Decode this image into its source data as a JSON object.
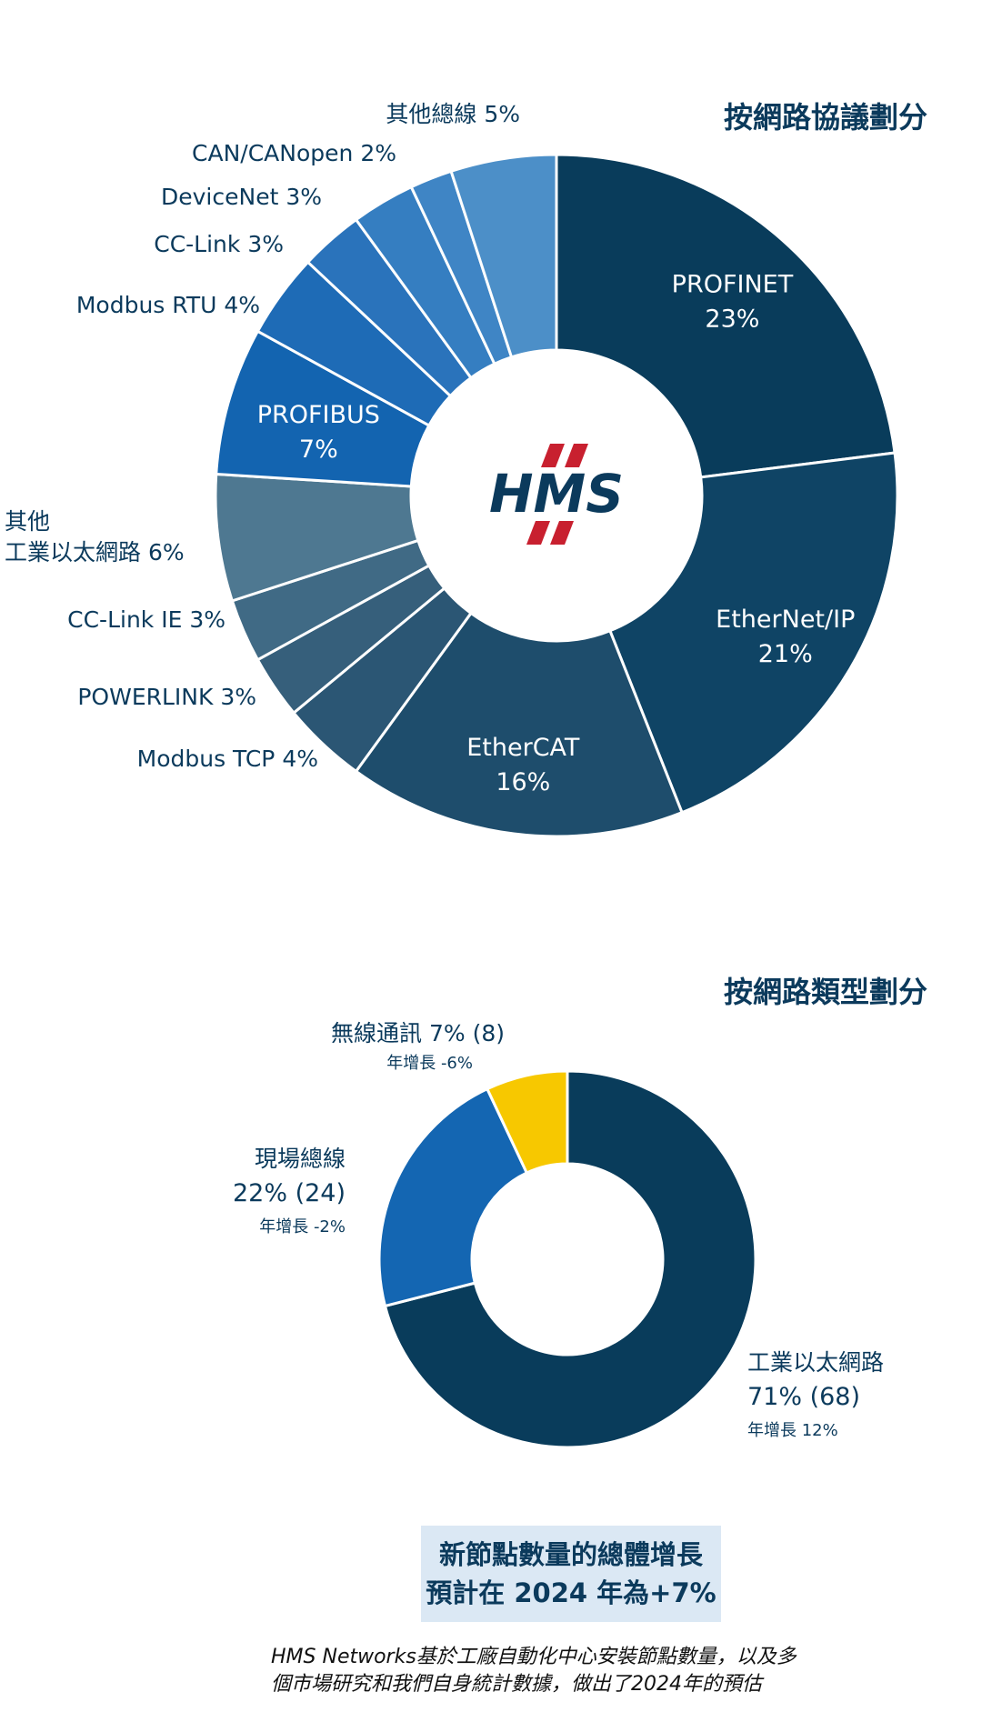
{
  "chart_data": [
    {
      "type": "pie",
      "variant": "donut",
      "title": "按網路協議劃分",
      "center_logo": "HMS",
      "slices": [
        {
          "label": "PROFINET",
          "value": 23,
          "value_text": "23%",
          "color": "#093c5b",
          "label_position": "inside"
        },
        {
          "label": "EtherNet/IP",
          "value": 21,
          "value_text": "21%",
          "color": "#0f4465",
          "label_position": "inside"
        },
        {
          "label": "EtherCAT",
          "value": 16,
          "value_text": "16%",
          "color": "#1e4d6c",
          "label_position": "inside"
        },
        {
          "label": "Modbus TCP",
          "value": 4,
          "value_text": "4%",
          "color": "#2b5674",
          "label_position": "outside"
        },
        {
          "label": "POWERLINK",
          "value": 3,
          "value_text": "3%",
          "color": "#365f7b",
          "label_position": "outside"
        },
        {
          "label": "CC-Link IE",
          "value": 3,
          "value_text": "3%",
          "color": "#406a85",
          "label_position": "outside"
        },
        {
          "label": "其他工業以太網路",
          "label_lines": [
            "其他",
            "工業以太網路 6%"
          ],
          "value": 6,
          "value_text": "6%",
          "color": "#4e7891",
          "label_position": "outside"
        },
        {
          "label": "PROFIBUS",
          "value": 7,
          "value_text": "7%",
          "color": "#1364b0",
          "label_position": "inside"
        },
        {
          "label": "Modbus RTU",
          "value": 4,
          "value_text": "4%",
          "color": "#1e6bb6",
          "label_position": "outside"
        },
        {
          "label": "CC-Link",
          "value": 3,
          "value_text": "3%",
          "color": "#2a73bb",
          "label_position": "outside"
        },
        {
          "label": "DeviceNet",
          "value": 3,
          "value_text": "3%",
          "color": "#357ec1",
          "label_position": "outside"
        },
        {
          "label": "CAN/CANopen",
          "value": 2,
          "value_text": "2%",
          "color": "#3f85c5",
          "label_position": "outside"
        },
        {
          "label": "其他總線",
          "value": 5,
          "value_text": "5%",
          "color": "#4c8fc8",
          "label_position": "outside"
        }
      ]
    },
    {
      "type": "pie",
      "variant": "donut",
      "title": "按網路類型劃分",
      "slices": [
        {
          "label": "工業以太網路",
          "value": 71,
          "value_text": "71% (68)",
          "growth": "年增長 12%",
          "color": "#093c5b"
        },
        {
          "label": "現場總線",
          "value": 22,
          "value_text": "22% (24)",
          "growth": "年增長  -2%",
          "color": "#1466b2"
        },
        {
          "label": "無線通訊",
          "value": 7,
          "value_text": "7% (8)",
          "growth": "年增長 -6%",
          "color": "#f7c800"
        }
      ]
    }
  ],
  "summary": {
    "line1": "新節點數量的總體增長",
    "line2": "預計在 2024 年為+7%"
  },
  "footnote": {
    "line1": "HMS Networks基於工廠自動化中心安裝節點數量，以及多",
    "line2": "個市場研究和我們自身統計數據，做出了2024年的預估"
  },
  "colors": {
    "text": "#0b3a5c",
    "logo_red": "#c8202f",
    "logo_navy": "#0b3a5c",
    "summary_bg": "#dbe8f4"
  }
}
